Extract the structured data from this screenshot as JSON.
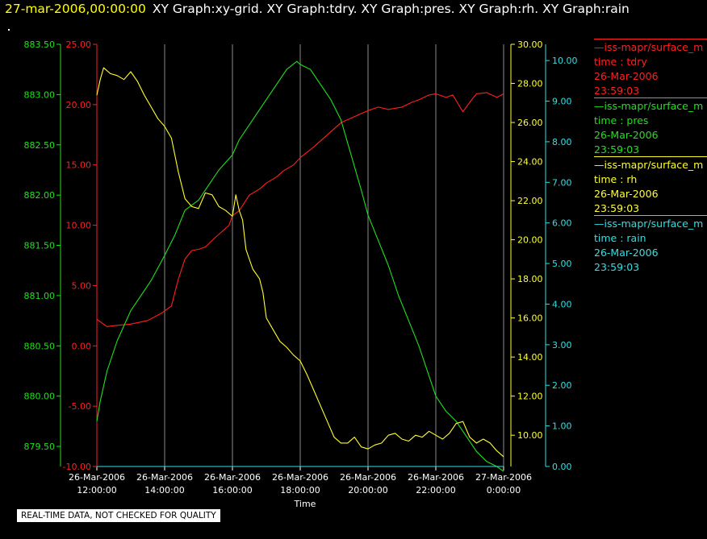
{
  "header": {
    "date": "27-mar-2006,00:00:00",
    "rest": "XY Graph:xy-grid.  XY Graph:tdry.  XY Graph:pres.  XY Graph:rh.  XY Graph:rain"
  },
  "footer": {
    "note": "REAL-TIME DATA, NOT CHECKED FOR QUALITY"
  },
  "legend": [
    {
      "source": "—iss-mapr/surface_m",
      "var": "time : tdry",
      "date": "26-Mar-2006",
      "time": "23:59:03",
      "color": "#ff2020"
    },
    {
      "source": "—iss-mapr/surface_m",
      "var": "time : pres",
      "date": "26-Mar-2006",
      "time": "23:59:03",
      "color": "#20e020"
    },
    {
      "source": "—iss-mapr/surface_m",
      "var": "time : rh",
      "date": "26-Mar-2006",
      "time": "23:59:03",
      "color": "#ffff30"
    },
    {
      "source": "—iss-mapr/surface_m",
      "var": "time : rain",
      "date": "26-Mar-2006",
      "time": "23:59:03",
      "color": "#30e0e0"
    }
  ],
  "chart_data": {
    "type": "line",
    "xlabel": "Time",
    "x_ticks": [
      [
        "26-Mar-2006",
        "12:00:00"
      ],
      [
        "26-Mar-2006",
        "14:00:00"
      ],
      [
        "26-Mar-2006",
        "16:00:00"
      ],
      [
        "26-Mar-2006",
        "18:00:00"
      ],
      [
        "26-Mar-2006",
        "20:00:00"
      ],
      [
        "26-Mar-2006",
        "22:00:00"
      ],
      [
        "27-Mar-2006",
        "0:00:00"
      ]
    ],
    "x_hours": [
      12,
      14,
      16,
      18,
      20,
      22,
      24
    ],
    "xlim": [
      12,
      24
    ],
    "grid_vertical": true,
    "axes": {
      "pres": {
        "color": "#20e020",
        "ylim": [
          879.3,
          883.5
        ],
        "ticks": [
          "879.50",
          "880.00",
          "880.50",
          "881.00",
          "881.50",
          "882.00",
          "882.50",
          "883.00",
          "883.50"
        ]
      },
      "tdry": {
        "color": "#ff2020",
        "ylim": [
          -10,
          25
        ],
        "ticks": [
          "-10.00",
          "-5.00",
          "0.00",
          "5.00",
          "10.00",
          "15.00",
          "20.00",
          "25.00"
        ]
      },
      "rh": {
        "color": "#ffff30",
        "ylim": [
          8.4,
          30
        ],
        "ticks": [
          "10.00",
          "12.00",
          "14.00",
          "16.00",
          "18.00",
          "20.00",
          "22.00",
          "24.00",
          "26.00",
          "28.00",
          "30.00"
        ]
      },
      "rain": {
        "color": "#30e0e0",
        "ylim": [
          0,
          10.4
        ],
        "ticks": [
          "0.00",
          "1.00",
          "2.00",
          "3.00",
          "4.00",
          "5.00",
          "6.00",
          "7.00",
          "8.00",
          "9.00",
          "10.00"
        ]
      }
    },
    "series": [
      {
        "key": "tdry",
        "color": "#ff2020",
        "x": [
          12.0,
          12.3,
          12.6,
          13.0,
          13.5,
          13.9,
          14.2,
          14.4,
          14.6,
          14.8,
          15.0,
          15.2,
          15.5,
          15.9,
          16.0,
          16.2,
          16.5,
          16.8,
          17.0,
          17.3,
          17.5,
          17.8,
          18.0,
          18.4,
          18.8,
          19.2,
          19.6,
          20.0,
          20.3,
          20.6,
          21.0,
          21.3,
          21.5,
          21.8,
          22.0,
          22.3,
          22.5,
          22.8,
          23.0,
          23.2,
          23.5,
          23.8,
          24.0
        ],
        "y": [
          2.2,
          1.6,
          1.7,
          1.8,
          2.1,
          2.7,
          3.3,
          5.5,
          7.2,
          7.9,
          8.0,
          8.2,
          9.0,
          10.0,
          10.8,
          11.2,
          12.5,
          13.0,
          13.5,
          14.0,
          14.5,
          15.0,
          15.6,
          16.5,
          17.5,
          18.5,
          19.0,
          19.5,
          19.8,
          19.6,
          19.8,
          20.2,
          20.4,
          20.8,
          20.9,
          20.6,
          20.8,
          19.4,
          20.2,
          20.9,
          21.0,
          20.6,
          20.9
        ]
      },
      {
        "key": "pres",
        "color": "#20e020",
        "x": [
          12.0,
          12.1,
          12.3,
          12.6,
          13.0,
          13.3,
          13.6,
          14.0,
          14.3,
          14.6,
          15.0,
          15.3,
          15.6,
          16.0,
          16.2,
          16.5,
          16.8,
          17.0,
          17.3,
          17.6,
          17.9,
          18.0,
          18.3,
          18.6,
          18.9,
          19.2,
          19.5,
          19.8,
          20.0,
          20.3,
          20.6,
          20.9,
          21.2,
          21.5,
          21.8,
          22.0,
          22.3,
          22.6,
          22.9,
          23.2,
          23.5,
          23.8,
          24.0
        ],
        "y": [
          879.75,
          879.95,
          880.25,
          880.55,
          880.85,
          881.0,
          881.15,
          881.4,
          881.6,
          881.85,
          881.95,
          882.1,
          882.25,
          882.4,
          882.55,
          882.7,
          882.85,
          882.95,
          883.1,
          883.25,
          883.33,
          883.3,
          883.25,
          883.1,
          882.95,
          882.75,
          882.4,
          882.05,
          881.8,
          881.55,
          881.3,
          881.0,
          880.75,
          880.5,
          880.2,
          880.0,
          879.85,
          879.75,
          879.6,
          879.45,
          879.35,
          879.3,
          879.25
        ]
      },
      {
        "key": "rh",
        "color": "#ffff30",
        "x": [
          12.0,
          12.1,
          12.2,
          12.4,
          12.6,
          12.8,
          13.0,
          13.2,
          13.4,
          13.6,
          13.8,
          14.0,
          14.2,
          14.4,
          14.6,
          14.8,
          15.0,
          15.2,
          15.4,
          15.6,
          15.8,
          16.0,
          16.1,
          16.2,
          16.3,
          16.4,
          16.6,
          16.8,
          16.9,
          17.0,
          17.2,
          17.4,
          17.6,
          17.8,
          18.0,
          18.2,
          18.4,
          18.6,
          18.8,
          19.0,
          19.2,
          19.4,
          19.6,
          19.8,
          20.0,
          20.2,
          20.4,
          20.6,
          20.8,
          21.0,
          21.2,
          21.4,
          21.6,
          21.8,
          22.0,
          22.2,
          22.4,
          22.6,
          22.8,
          23.0,
          23.2,
          23.4,
          23.6,
          23.8,
          24.0
        ],
        "y": [
          27.4,
          28.2,
          28.8,
          28.5,
          28.4,
          28.2,
          28.6,
          28.1,
          27.4,
          26.8,
          26.2,
          25.8,
          25.2,
          23.5,
          22.1,
          21.7,
          21.6,
          22.4,
          22.3,
          21.7,
          21.5,
          21.2,
          22.3,
          21.5,
          21.0,
          19.5,
          18.5,
          18.0,
          17.3,
          16.0,
          15.4,
          14.8,
          14.5,
          14.1,
          13.8,
          13.1,
          12.3,
          11.5,
          10.7,
          9.9,
          9.6,
          9.6,
          9.9,
          9.4,
          9.3,
          9.5,
          9.6,
          10.0,
          10.1,
          9.8,
          9.7,
          10.0,
          9.9,
          10.2,
          10.0,
          9.8,
          10.1,
          10.6,
          10.7,
          9.9,
          9.6,
          9.8,
          9.6,
          9.2,
          8.9
        ]
      },
      {
        "key": "rain",
        "color": "#30e0e0",
        "x": [
          12,
          24
        ],
        "y": [
          0.0,
          0.0
        ]
      }
    ]
  }
}
